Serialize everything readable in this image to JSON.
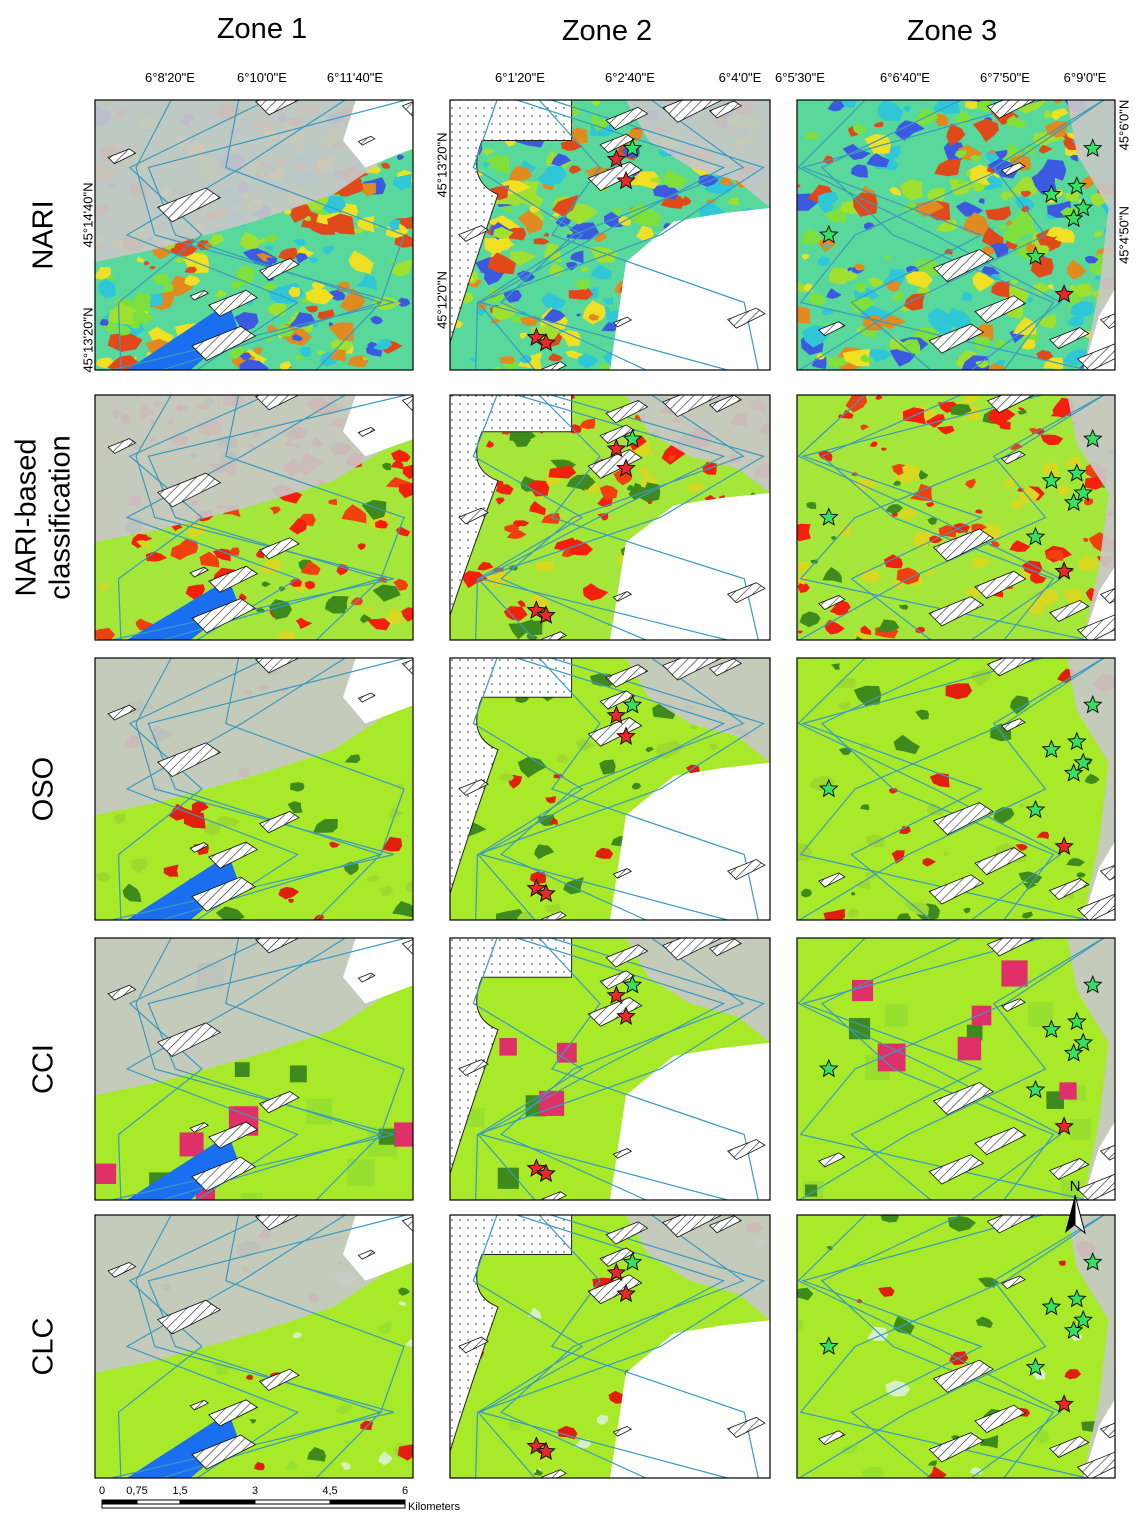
{
  "columns": [
    "Zone 1",
    "Zone 2",
    "Zone 3"
  ],
  "rows": [
    [
      "NARI"
    ],
    [
      "NARI-based",
      "classification"
    ],
    [
      "OSO"
    ],
    [
      "CCI"
    ],
    [
      "CLC"
    ]
  ],
  "coordinates": [
    {
      "x": [
        "6°8'20\"E",
        "6°10'0\"E",
        "6°11'40\"E"
      ],
      "y": [
        "45°14'40\"N",
        "45°13'20\"N"
      ]
    },
    {
      "x": [
        "6°1'20\"E",
        "6°2'40\"E",
        "6°4'0\"E"
      ],
      "y": [
        "45°13'20\"N",
        "45°12'0\"N"
      ]
    },
    {
      "x": [
        "6°5'30\"E",
        "6°6'40\"E",
        "6°7'50\"E",
        "6°9'0\"E"
      ],
      "y": [
        "45°6'0\"N",
        "45°4'50\"N"
      ]
    }
  ],
  "scale_bar": {
    "labels": [
      "0",
      "0,75",
      "1,5",
      "3",
      "4,5",
      "6"
    ],
    "unit": "Kilometers"
  },
  "north_arrow": "N"
}
